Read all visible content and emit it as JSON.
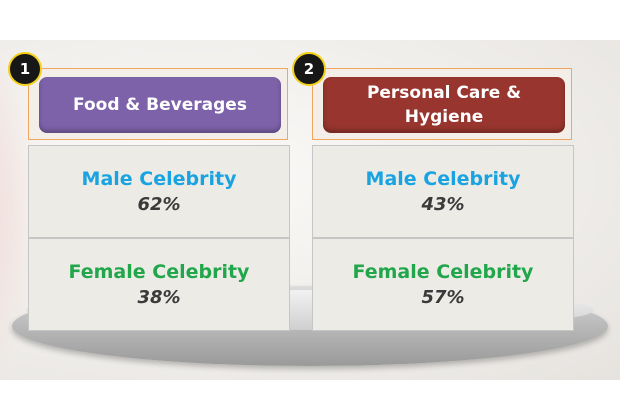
{
  "categories": [
    {
      "number": "1",
      "title": "Food & Beverages",
      "male": {
        "label": "Male Celebrity",
        "value": "62%"
      },
      "female": {
        "label": "Female Celebrity",
        "value": "38%"
      }
    },
    {
      "number": "2",
      "title": "Personal Care & Hygiene",
      "male": {
        "label": "Male Celebrity",
        "value": "43%"
      },
      "female": {
        "label": "Female Celebrity",
        "value": "57%"
      }
    }
  ],
  "colors": {
    "food_header": "#7d62a9",
    "care_header": "#97352e",
    "male_text": "#1aa3e1",
    "female_text": "#21a64b",
    "badge_border": "#f4cf18"
  }
}
